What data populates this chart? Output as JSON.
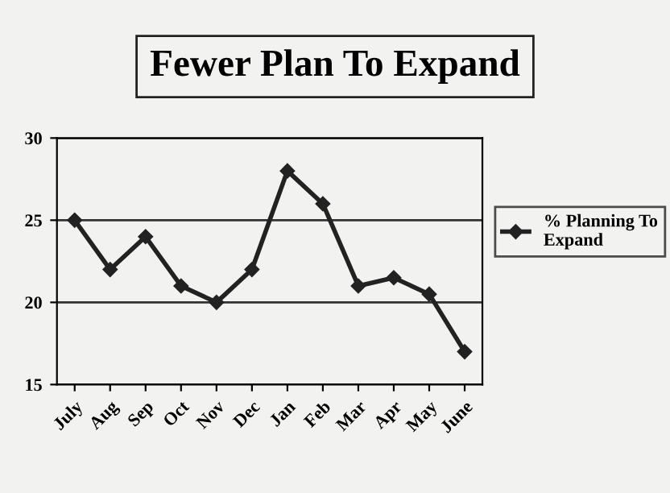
{
  "chart_data": {
    "type": "line",
    "title": "Fewer Plan To Expand",
    "categories": [
      "July",
      "Aug",
      "Sep",
      "Oct",
      "Nov",
      "Dec",
      "Jan",
      "Feb",
      "Mar",
      "Apr",
      "May",
      "June"
    ],
    "series": [
      {
        "name": "% Planning To\nExpand",
        "color": "#222222",
        "values": [
          25,
          22,
          24,
          21,
          20,
          22,
          28,
          26,
          21,
          21.5,
          20.5,
          17
        ]
      }
    ],
    "ylim": [
      15,
      30
    ],
    "yticks": [
      15,
      20,
      25,
      30
    ],
    "grid": "y",
    "legend": "right",
    "marker": "diamond",
    "line_style": "solid"
  }
}
